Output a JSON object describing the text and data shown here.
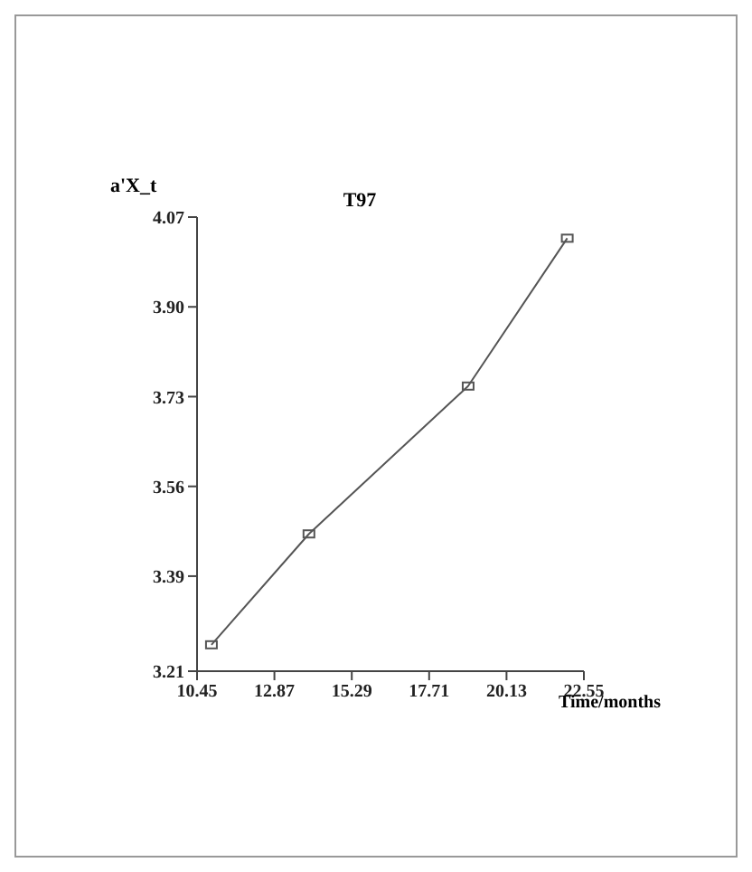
{
  "chart_data": {
    "type": "line",
    "title": "T97",
    "xlabel": "Time/months",
    "ylabel": "a'X_t",
    "x": [
      10.9,
      13.95,
      18.93,
      22.03
    ],
    "series": [
      {
        "color": "#555555",
        "values": [
          3.26,
          3.47,
          3.75,
          4.03
        ]
      }
    ],
    "xlim": [
      10.45,
      22.55
    ],
    "xticks": [
      10.45,
      12.87,
      15.29,
      17.71,
      20.13,
      22.55
    ],
    "ylim": [
      3.21,
      4.07
    ],
    "yticks": [
      3.21,
      3.39,
      3.56,
      3.73,
      {
        "value": 3.9,
        "label": "3.90"
      },
      4.07
    ],
    "grid": false,
    "legend": false,
    "marker": "square",
    "line_style": "solid"
  }
}
